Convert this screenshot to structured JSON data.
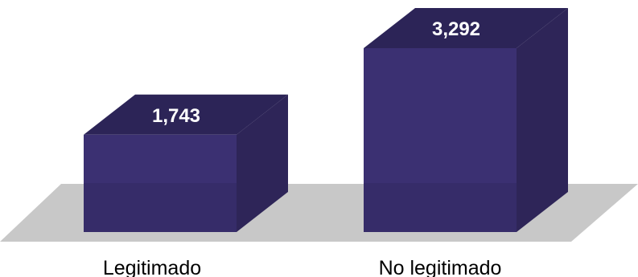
{
  "chart_data": {
    "type": "bar",
    "categories": [
      "Legitimado",
      "No legitimado"
    ],
    "values": [
      1743,
      3292
    ],
    "value_labels": [
      "1,743",
      "3,292"
    ],
    "title": "",
    "xlabel": "",
    "ylabel": "",
    "ylim": [
      0,
      3292
    ],
    "grid": false,
    "legend": "none",
    "style": "3d",
    "colors": {
      "bar_front": "#3b3072",
      "bar_top": "#2c2457",
      "bar_side": "#2e2558",
      "floor": "#c8c8c8"
    }
  }
}
